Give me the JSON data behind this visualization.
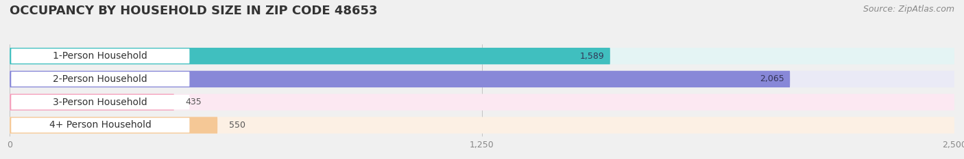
{
  "title": "OCCUPANCY BY HOUSEHOLD SIZE IN ZIP CODE 48653",
  "source": "Source: ZipAtlas.com",
  "categories": [
    "1-Person Household",
    "2-Person Household",
    "3-Person Household",
    "4+ Person Household"
  ],
  "values": [
    1589,
    2065,
    435,
    550
  ],
  "bar_colors": [
    "#40BFBF",
    "#8888D8",
    "#F4A0BC",
    "#F5C896"
  ],
  "bar_bg_colors": [
    "#E4F4F4",
    "#EAEAF6",
    "#FCE8F2",
    "#FCF0E4"
  ],
  "xlim": [
    0,
    2500
  ],
  "xticks": [
    0,
    1250,
    2500
  ],
  "background_color": "#f0f0f0",
  "title_fontsize": 13,
  "source_fontsize": 9,
  "label_fontsize": 10,
  "value_fontsize": 9
}
